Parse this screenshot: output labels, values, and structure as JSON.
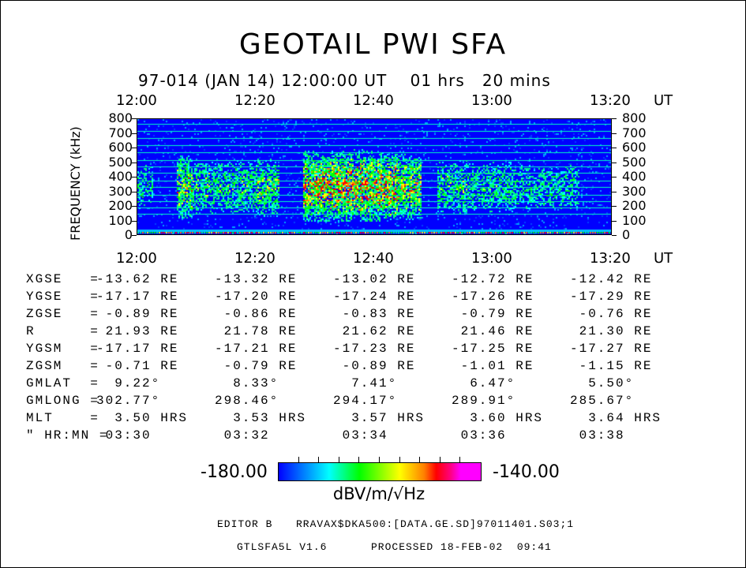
{
  "title": "GEOTAIL PWI SFA",
  "subtitle": "97-014 (JAN 14) 12:00:00 UT    01 hrs   20 mins",
  "chart_data": {
    "type": "heatmap",
    "title": "GEOTAIL PWI SFA",
    "ylabel": "FREQUENCY (kHz)",
    "xlabel": "UT",
    "x_ticks": [
      "12:00",
      "12:20",
      "12:40",
      "13:00",
      "13:20"
    ],
    "x_unit": "UT",
    "y_ticks": [
      "0",
      "100",
      "200",
      "300",
      "400",
      "500",
      "600",
      "700",
      "800"
    ],
    "ylim": [
      0,
      800
    ],
    "xlim": [
      "12:00",
      "13:20"
    ],
    "colorbar": {
      "min": "-180.00",
      "max": "-140.00",
      "label": "dBV/m/√Hz",
      "colors": [
        "#0000ff",
        "#00ffff",
        "#00ff00",
        "#ffff00",
        "#ff0000",
        "#ff00ff"
      ]
    }
  },
  "ephemeris": {
    "rows": [
      {
        "label": "XGSE   =",
        "values": [
          "-13.62 RE",
          "-13.32 RE",
          "-13.02 RE",
          "-12.72 RE",
          "-12.42 RE"
        ]
      },
      {
        "label": "YGSE   =",
        "values": [
          "-17.17 RE",
          "-17.20 RE",
          "-17.24 RE",
          "-17.26 RE",
          "-17.29 RE"
        ]
      },
      {
        "label": "ZGSE   =",
        "values": [
          " -0.89 RE",
          " -0.86 RE",
          " -0.83 RE",
          " -0.79 RE",
          " -0.76 RE"
        ]
      },
      {
        "label": "R      =",
        "values": [
          " 21.93 RE",
          " 21.78 RE",
          " 21.62 RE",
          " 21.46 RE",
          " 21.30 RE"
        ]
      },
      {
        "label": "YGSM   =",
        "values": [
          "-17.17 RE",
          "-17.21 RE",
          "-17.23 RE",
          "-17.25 RE",
          "-17.27 RE"
        ]
      },
      {
        "label": "ZGSM   =",
        "values": [
          " -0.71 RE",
          " -0.79 RE",
          " -0.89 RE",
          " -1.01 RE",
          " -1.15 RE"
        ]
      },
      {
        "label": "GMLAT  =",
        "values": [
          "  9.22°",
          "  8.33°",
          "  7.41°",
          "  6.47°",
          "  5.50°"
        ]
      },
      {
        "label": "GMLONG =",
        "values": [
          "302.77°",
          "298.46°",
          "294.17°",
          "289.91°",
          "285.67°"
        ]
      },
      {
        "label": "MLT    =",
        "values": [
          "  3.50 HRS",
          "  3.53 HRS",
          "  3.57 HRS",
          "  3.60 HRS",
          "  3.64 HRS"
        ]
      },
      {
        "label": "\" HR:MN =",
        "values": [
          " 03:30",
          " 03:32",
          " 03:34",
          " 03:36",
          " 03:38"
        ]
      }
    ]
  },
  "footer": {
    "editor": "EDITOR B",
    "file": "RRAVAX$DKA500:[DATA.GE.SD]97011401.S03;1",
    "program": "GTLSFA5L V1.6",
    "processed": "PROCESSED 18-FEB-02  09:41"
  }
}
